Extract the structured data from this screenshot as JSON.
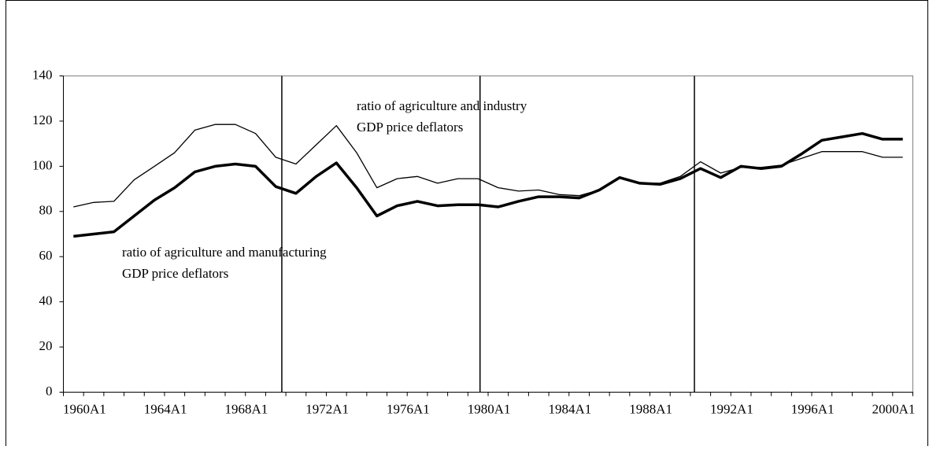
{
  "chart_data": {
    "type": "line",
    "categories": [
      "1960A1",
      null,
      null,
      null,
      "1964A1",
      null,
      null,
      null,
      "1968A1",
      null,
      null,
      null,
      "1972A1",
      null,
      null,
      null,
      "1976A1",
      null,
      null,
      null,
      "1980A1",
      null,
      null,
      null,
      "1984A1",
      null,
      null,
      null,
      "1988A1",
      null,
      null,
      null,
      "1992A1",
      null,
      null,
      null,
      "1996A1",
      null,
      null,
      null,
      "2000A1",
      null
    ],
    "series": [
      {
        "color": "#000000",
        "width": 1.3,
        "values": [
          82,
          84,
          84.5,
          94,
          100,
          106,
          116,
          118.5,
          118.5,
          114.5,
          104,
          101,
          109.5,
          118,
          106,
          90.5,
          94.5,
          95.5,
          92.5,
          94.5,
          94.5,
          90.5,
          89,
          89.5,
          87.5,
          87,
          89.5,
          95,
          92.5,
          92.5,
          95.5,
          102,
          97,
          99.5,
          99.5,
          100.5,
          103.5,
          106.5,
          106.5,
          106.5,
          104,
          104
        ]
      },
      {
        "color": "#000000",
        "width": 3.5,
        "values": [
          69,
          70,
          71,
          78,
          85,
          90.5,
          97.5,
          100,
          101,
          100,
          91,
          88,
          95.5,
          101.5,
          90.5,
          78,
          82.5,
          84.5,
          82.5,
          83,
          83,
          82,
          84.5,
          86.5,
          86.5,
          86,
          89.5,
          95,
          92.5,
          92,
          94.5,
          99,
          95,
          100,
          99,
          100,
          105.5,
          111.5,
          113,
          114.5,
          112,
          112
        ]
      }
    ],
    "annotations": [
      [
        "ratio of agriculture and industry",
        "GDP price deflators"
      ],
      [
        "ratio of agriculture and manufacturing",
        "GDP price deflators"
      ]
    ],
    "ylim": [
      0,
      140
    ],
    "yticks": [
      0,
      20,
      40,
      60,
      80,
      100,
      120,
      140
    ],
    "grid": false
  }
}
